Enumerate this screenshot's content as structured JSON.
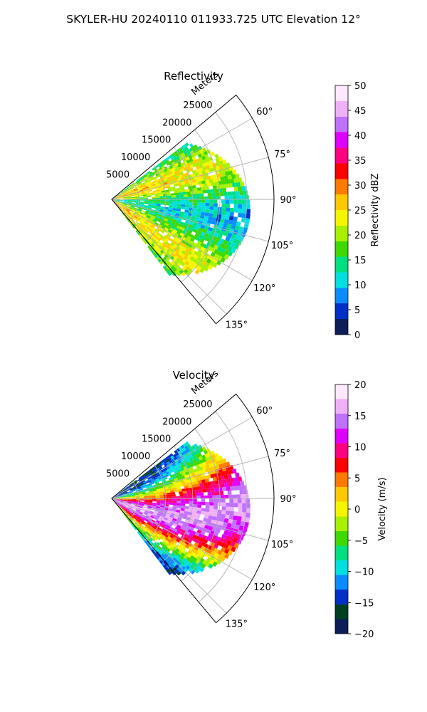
{
  "figure": {
    "suptitle": "SKYLER-HU  20240110  011933.725 UTC Elevation 12°"
  },
  "chart_data": [
    {
      "type": "heatmap",
      "title": "Reflectivity",
      "range_label": "Meters",
      "range_ticks": [
        "5000",
        "10000",
        "15000",
        "20000",
        "25000"
      ],
      "range_tick_values": [
        5000,
        10000,
        15000,
        20000,
        25000
      ],
      "range_max": 30000,
      "azimuth_range": [
        50,
        140
      ],
      "azimuth_ticks": [
        "60°",
        "75°",
        "90°",
        "105°",
        "120°",
        "135°"
      ],
      "azimuth_tick_values": [
        60,
        75,
        90,
        105,
        120,
        135
      ],
      "grid": true,
      "colorbar": {
        "label": "Reflectivity dBZ",
        "range": [
          0,
          50
        ],
        "ticks": [
          "0",
          "5",
          "10",
          "15",
          "20",
          "25",
          "30",
          "35",
          "40",
          "45",
          "50"
        ],
        "tick_values": [
          0,
          5,
          10,
          15,
          20,
          25,
          30,
          35,
          40,
          45,
          50
        ],
        "colors": [
          "#0b1e5a",
          "#0030c8",
          "#0a8cff",
          "#00e0e0",
          "#00e080",
          "#3fd800",
          "#a8f000",
          "#f5f500",
          "#ffc800",
          "#ff7a00",
          "#ff0000",
          "#ff0080",
          "#e000ff",
          "#c070ff",
          "#f0b0f8",
          "#fde8fd"
        ]
      }
    },
    {
      "type": "heatmap",
      "title": "Velocity",
      "range_label": "Meters",
      "range_ticks": [
        "5000",
        "10000",
        "15000",
        "20000",
        "25000"
      ],
      "range_tick_values": [
        5000,
        10000,
        15000,
        20000,
        25000
      ],
      "range_max": 30000,
      "azimuth_range": [
        50,
        140
      ],
      "azimuth_ticks": [
        "60°",
        "75°",
        "90°",
        "105°",
        "120°",
        "135°"
      ],
      "azimuth_tick_values": [
        60,
        75,
        90,
        105,
        120,
        135
      ],
      "grid": true,
      "colorbar": {
        "label": "Velocity (m/s)",
        "range": [
          -20,
          20
        ],
        "ticks": [
          "−20",
          "−15",
          "−10",
          "−5",
          "0",
          "5",
          "10",
          "15",
          "20"
        ],
        "tick_values": [
          -20,
          -15,
          -10,
          -5,
          0,
          5,
          10,
          15,
          20
        ],
        "colors": [
          "#0b1e5a",
          "#004020",
          "#0030c8",
          "#0a8cff",
          "#00e0e0",
          "#00e080",
          "#3fd800",
          "#a8f000",
          "#f5f500",
          "#ffc800",
          "#ff7a00",
          "#ff0000",
          "#ff0080",
          "#e000ff",
          "#c070ff",
          "#f0b0f8",
          "#fde8fd"
        ]
      }
    }
  ]
}
